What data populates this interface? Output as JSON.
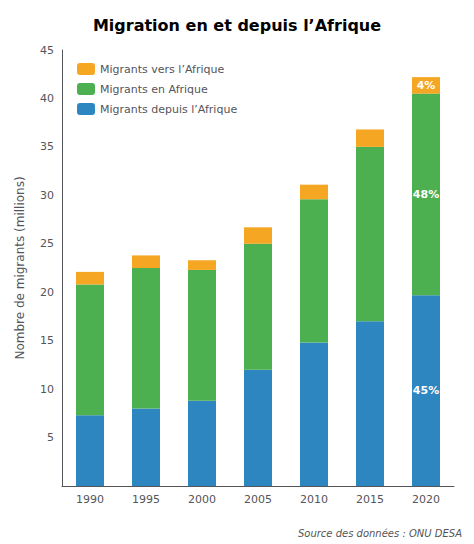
{
  "chart_data": {
    "type": "bar",
    "title": "Migration en et depuis l’Afrique",
    "ylabel": "Nombre de migrants (millions)",
    "source": "Source des données : ONU DESA",
    "categories": [
      "1990",
      "1995",
      "2000",
      "2005",
      "2010",
      "2015",
      "2020"
    ],
    "series": [
      {
        "name": "Migrants depuis l’Afrique",
        "color": "#2e86c0",
        "values": [
          7.3,
          8.0,
          8.8,
          12.0,
          14.8,
          17.0,
          19.7
        ]
      },
      {
        "name": "Migrants en Afrique",
        "color": "#4caf50",
        "values": [
          13.5,
          14.5,
          13.5,
          13.0,
          14.8,
          18.0,
          20.8
        ]
      },
      {
        "name": "Migrants vers l’Afrique",
        "color": "#f5a623",
        "values": [
          1.3,
          1.3,
          1.0,
          1.7,
          1.5,
          1.8,
          1.7
        ]
      }
    ],
    "stacked": true,
    "legend": "upper left",
    "grid": false,
    "ylim": [
      0,
      45
    ],
    "yticks": [
      5,
      10,
      15,
      20,
      25,
      30,
      35,
      40,
      45
    ],
    "annotations": [
      {
        "text": "45%",
        "category": "2020",
        "series": "Migrants depuis l’Afrique"
      },
      {
        "text": "48%",
        "category": "2020",
        "series": "Migrants en Afrique"
      },
      {
        "text": "4%",
        "category": "2020",
        "series": "Migrants vers l’Afrique"
      }
    ]
  }
}
